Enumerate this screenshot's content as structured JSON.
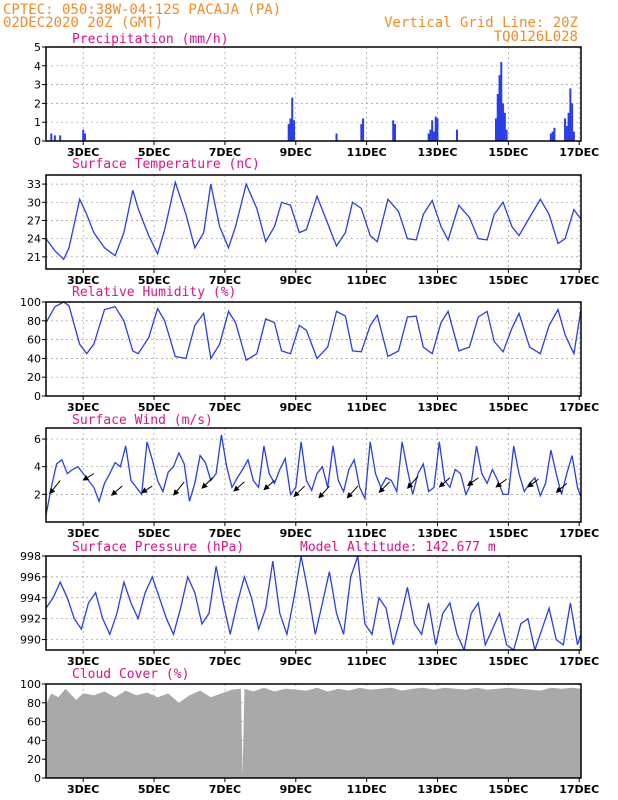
{
  "header": {
    "line1": "CPTEC:   050:38W-04:12S   PACAJA (PA)",
    "line2": "02DEC2020 20Z (GMT)",
    "grid_note": "Vertical Grid Line: 20Z",
    "code": "TQ0126L028",
    "model_altitude": "Model Altitude:  142.677  m"
  },
  "colors": {
    "header": "#f28c28",
    "title": "#e0118a",
    "series": "#2b3de8",
    "cloud": "#a9a9a9",
    "wind_arrow": "#000000"
  },
  "chart_data": [
    {
      "id": "precip",
      "type": "bar",
      "title": "Precipitation (mm/h)",
      "x_ticks": [
        "3DEC",
        "5DEC",
        "7DEC",
        "9DEC",
        "11DEC",
        "13DEC",
        "15DEC",
        "17DEC"
      ],
      "ylim": [
        0,
        5
      ],
      "y_ticks": [
        0,
        1,
        2,
        3,
        4,
        5
      ],
      "x": [
        2.1,
        2.2,
        2.35,
        3.0,
        3.05,
        8.8,
        8.85,
        8.9,
        8.95,
        10.15,
        10.85,
        10.9,
        11.75,
        11.8,
        12.75,
        12.8,
        12.85,
        12.9,
        12.95,
        13.0,
        13.55,
        14.65,
        14.7,
        14.75,
        14.8,
        14.85,
        14.9,
        14.95,
        16.2,
        16.25,
        16.3,
        16.6,
        16.65,
        16.7,
        16.75,
        16.8,
        16.85
      ],
      "values": [
        0.4,
        0.3,
        0.3,
        0.6,
        0.4,
        0.9,
        1.2,
        2.3,
        1.1,
        0.4,
        0.9,
        1.2,
        1.1,
        0.9,
        0.4,
        0.6,
        1.1,
        0.5,
        1.3,
        1.2,
        0.6,
        1.2,
        2.5,
        3.5,
        4.2,
        2.0,
        1.5,
        0.6,
        0.4,
        0.5,
        0.7,
        1.2,
        0.8,
        1.5,
        2.8,
        2.0,
        0.5
      ]
    },
    {
      "id": "temp",
      "type": "line",
      "title": "Surface Temperature (nC)",
      "x_ticks": [
        "3DEC",
        "5DEC",
        "7DEC",
        "9DEC",
        "11DEC",
        "13DEC",
        "15DEC",
        "17DEC"
      ],
      "ylim": [
        19,
        34.5
      ],
      "y_ticks": [
        21,
        24,
        27,
        30,
        33
      ],
      "x": [
        1.95,
        2.2,
        2.45,
        2.6,
        2.9,
        3.1,
        3.3,
        3.6,
        3.9,
        4.15,
        4.4,
        4.55,
        4.85,
        5.1,
        5.3,
        5.6,
        5.9,
        6.15,
        6.4,
        6.6,
        6.85,
        7.1,
        7.3,
        7.6,
        7.9,
        8.15,
        8.4,
        8.6,
        8.85,
        9.1,
        9.3,
        9.6,
        9.9,
        10.15,
        10.4,
        10.6,
        10.85,
        11.1,
        11.3,
        11.6,
        11.9,
        12.15,
        12.4,
        12.6,
        12.85,
        13.1,
        13.3,
        13.6,
        13.9,
        14.15,
        14.4,
        14.6,
        14.85,
        15.1,
        15.3,
        15.6,
        15.9,
        16.15,
        16.4,
        16.6,
        16.85,
        17.05
      ],
      "values": [
        24,
        22,
        20.6,
        22.5,
        30.5,
        28,
        25,
        22.5,
        21.2,
        25,
        32,
        29,
        24.5,
        21.5,
        25.5,
        33.3,
        28,
        22.5,
        25,
        33,
        26,
        22.5,
        26,
        33,
        29,
        23.5,
        26,
        30,
        29.5,
        25,
        25.5,
        31,
        26.5,
        22.8,
        25,
        30,
        29,
        24.5,
        23.5,
        30.5,
        28.5,
        24,
        23.8,
        28,
        30.3,
        26,
        23.8,
        29.5,
        27.5,
        24,
        23.8,
        28,
        30,
        26,
        24.5,
        27.5,
        30.5,
        28,
        23.2,
        24,
        28.8,
        27.2
      ]
    },
    {
      "id": "rh",
      "type": "line",
      "title": "Relative Humidity (%)",
      "x_ticks": [
        "3DEC",
        "5DEC",
        "7DEC",
        "9DEC",
        "11DEC",
        "13DEC",
        "15DEC",
        "17DEC"
      ],
      "ylim": [
        0,
        100
      ],
      "y_ticks": [
        0,
        20,
        40,
        60,
        80,
        100
      ],
      "x": [
        1.95,
        2.2,
        2.45,
        2.6,
        2.9,
        3.1,
        3.3,
        3.6,
        3.9,
        4.15,
        4.4,
        4.55,
        4.85,
        5.1,
        5.3,
        5.6,
        5.9,
        6.15,
        6.4,
        6.6,
        6.85,
        7.1,
        7.3,
        7.6,
        7.9,
        8.15,
        8.4,
        8.6,
        8.85,
        9.1,
        9.3,
        9.6,
        9.9,
        10.15,
        10.4,
        10.6,
        10.85,
        11.1,
        11.3,
        11.6,
        11.9,
        12.15,
        12.4,
        12.6,
        12.85,
        13.1,
        13.3,
        13.6,
        13.9,
        14.15,
        14.4,
        14.6,
        14.85,
        15.1,
        15.3,
        15.6,
        15.9,
        16.15,
        16.4,
        16.6,
        16.85,
        17.05
      ],
      "values": [
        78,
        95,
        100,
        96,
        55,
        45,
        55,
        92,
        95,
        80,
        48,
        45,
        62,
        93,
        80,
        42,
        40,
        75,
        88,
        40,
        55,
        90,
        78,
        38,
        45,
        82,
        78,
        48,
        45,
        75,
        70,
        40,
        52,
        90,
        85,
        48,
        47,
        75,
        86,
        42,
        48,
        84,
        85,
        52,
        45,
        78,
        90,
        48,
        52,
        84,
        90,
        58,
        47,
        72,
        88,
        52,
        45,
        75,
        92,
        65,
        45,
        92
      ]
    },
    {
      "id": "wind",
      "type": "line",
      "title": "Surface Wind (m/s)",
      "x_ticks": [
        "3DEC",
        "5DEC",
        "7DEC",
        "9DEC",
        "11DEC",
        "13DEC",
        "15DEC",
        "17DEC"
      ],
      "ylim": [
        0,
        6.8
      ],
      "y_ticks": [
        2,
        4,
        6
      ],
      "x": [
        1.95,
        2.1,
        2.25,
        2.4,
        2.55,
        2.7,
        2.85,
        3.0,
        3.15,
        3.3,
        3.45,
        3.6,
        3.75,
        3.9,
        4.05,
        4.2,
        4.35,
        4.5,
        4.65,
        4.8,
        4.95,
        5.1,
        5.25,
        5.4,
        5.55,
        5.7,
        5.85,
        6.0,
        6.15,
        6.3,
        6.45,
        6.6,
        6.75,
        6.9,
        7.05,
        7.2,
        7.35,
        7.5,
        7.65,
        7.8,
        7.95,
        8.1,
        8.25,
        8.4,
        8.55,
        8.7,
        8.85,
        9.0,
        9.15,
        9.3,
        9.45,
        9.6,
        9.75,
        9.9,
        10.05,
        10.2,
        10.35,
        10.5,
        10.65,
        10.8,
        10.95,
        11.1,
        11.25,
        11.4,
        11.55,
        11.7,
        11.85,
        12.0,
        12.15,
        12.3,
        12.45,
        12.6,
        12.75,
        12.9,
        13.05,
        13.2,
        13.35,
        13.5,
        13.65,
        13.8,
        13.95,
        14.1,
        14.25,
        14.4,
        14.55,
        14.7,
        14.85,
        15.0,
        15.15,
        15.3,
        15.45,
        15.6,
        15.75,
        15.9,
        16.05,
        16.2,
        16.35,
        16.5,
        16.65,
        16.8,
        16.95,
        17.05
      ],
      "values": [
        0.5,
        2.5,
        4.2,
        4.5,
        3.5,
        3.8,
        4.0,
        3.5,
        3.0,
        2.5,
        1.5,
        2.8,
        3.5,
        4.3,
        4.0,
        5.5,
        3.0,
        2.5,
        2.0,
        5.8,
        4.5,
        3.0,
        2.2,
        3.6,
        4.0,
        5.0,
        4.2,
        1.5,
        2.8,
        4.8,
        4.3,
        3.0,
        3.5,
        6.3,
        4.0,
        2.5,
        3.2,
        3.8,
        4.5,
        3.0,
        2.5,
        5.5,
        3.5,
        2.8,
        3.8,
        4.6,
        2.0,
        2.5,
        5.8,
        3.0,
        2.3,
        3.5,
        4.0,
        2.5,
        5.5,
        3.0,
        2.2,
        3.8,
        4.5,
        2.5,
        1.7,
        5.8,
        3.5,
        2.5,
        3.2,
        3.0,
        2.2,
        5.8,
        3.8,
        2.0,
        3.5,
        4.2,
        2.2,
        2.5,
        5.8,
        3.0,
        2.5,
        3.8,
        3.5,
        2.0,
        2.8,
        5.5,
        3.5,
        2.8,
        3.8,
        3.0,
        2.0,
        2.0,
        5.5,
        3.5,
        2.2,
        2.8,
        3.2,
        1.9,
        2.8,
        5.2,
        3.5,
        2.0,
        3.5,
        4.8,
        2.5,
        1.8
      ],
      "vectors": {
        "x": [
          2.35,
          3.3,
          4.1,
          4.95,
          5.85,
          6.65,
          7.55,
          8.4,
          9.25,
          9.95,
          10.75,
          11.65,
          12.45,
          13.35,
          14.15,
          14.95,
          15.85,
          16.65
        ],
        "y": [
          3.0,
          3.5,
          2.6,
          2.6,
          2.9,
          3.2,
          2.9,
          3.0,
          2.6,
          2.6,
          2.6,
          2.9,
          3.3,
          3.2,
          3.2,
          3.1,
          3.1,
          2.8
        ],
        "u": [
          -0.8,
          -0.8,
          -0.8,
          -0.8,
          -0.8,
          -0.8,
          -0.8,
          -0.8,
          -0.8,
          -0.8,
          -0.8,
          -0.8,
          -0.8,
          -0.8,
          -0.8,
          -0.8,
          -0.8,
          -0.8
        ],
        "v": [
          -1.0,
          -0.5,
          -0.7,
          -0.5,
          -1.0,
          -0.8,
          -0.7,
          -0.7,
          -0.8,
          -0.9,
          -0.9,
          -0.8,
          -0.9,
          -0.7,
          -0.6,
          -0.6,
          -0.6,
          -0.7
        ]
      }
    },
    {
      "id": "press",
      "type": "line",
      "title": "Surface Pressure (hPa)",
      "x_ticks": [
        "3DEC",
        "5DEC",
        "7DEC",
        "9DEC",
        "11DEC",
        "13DEC",
        "15DEC",
        "17DEC"
      ],
      "ylim": [
        989,
        998
      ],
      "y_ticks": [
        990,
        992,
        994,
        996,
        998
      ],
      "x": [
        1.95,
        2.15,
        2.35,
        2.55,
        2.75,
        2.95,
        3.15,
        3.35,
        3.55,
        3.75,
        3.95,
        4.15,
        4.35,
        4.55,
        4.75,
        4.95,
        5.15,
        5.35,
        5.55,
        5.75,
        5.95,
        6.15,
        6.35,
        6.55,
        6.75,
        6.95,
        7.15,
        7.35,
        7.55,
        7.75,
        7.95,
        8.15,
        8.35,
        8.55,
        8.75,
        8.95,
        9.15,
        9.35,
        9.55,
        9.75,
        9.95,
        10.15,
        10.35,
        10.55,
        10.75,
        10.95,
        11.15,
        11.35,
        11.55,
        11.75,
        11.95,
        12.15,
        12.35,
        12.55,
        12.75,
        12.95,
        13.15,
        13.35,
        13.55,
        13.75,
        13.95,
        14.15,
        14.35,
        14.55,
        14.75,
        14.95,
        15.15,
        15.35,
        15.55,
        15.75,
        15.95,
        16.15,
        16.35,
        16.55,
        16.75,
        16.95,
        17.05
      ],
      "values": [
        993,
        994,
        995.5,
        994,
        992,
        991,
        993.5,
        994.5,
        992,
        990.5,
        992.5,
        995.5,
        993.5,
        992,
        994.5,
        996,
        994,
        992,
        990.5,
        993,
        996,
        994.5,
        991.5,
        992.5,
        997,
        993.5,
        990.5,
        993.5,
        996,
        994,
        991,
        993,
        997.5,
        992.5,
        990.5,
        994,
        998,
        994.5,
        990.5,
        993.5,
        996.5,
        992.5,
        990.5,
        996,
        998,
        991.5,
        990.5,
        994,
        993,
        989.5,
        992,
        995,
        991.5,
        990.5,
        993.5,
        989.5,
        992.5,
        993.5,
        990.5,
        989,
        992.5,
        993.5,
        989.5,
        991,
        992.5,
        989.5,
        989,
        991.5,
        992,
        989,
        991,
        993,
        990,
        989.5,
        993.5,
        989.5,
        990.5
      ]
    },
    {
      "id": "cloud",
      "type": "area",
      "title": "Cloud Cover (%)",
      "x_ticks": [
        "3DEC",
        "5DEC",
        "7DEC",
        "9DEC",
        "11DEC",
        "13DEC",
        "15DEC",
        "17DEC"
      ],
      "ylim": [
        0,
        100
      ],
      "y_ticks": [
        0,
        20,
        40,
        60,
        80,
        100
      ],
      "x": [
        1.95,
        2.1,
        2.3,
        2.5,
        2.8,
        3.0,
        3.3,
        3.6,
        3.9,
        4.2,
        4.5,
        4.8,
        5.1,
        5.4,
        5.7,
        6.0,
        6.3,
        6.6,
        6.9,
        7.2,
        7.45,
        7.5,
        7.55,
        7.8,
        8.1,
        8.4,
        8.7,
        9.0,
        9.3,
        9.6,
        9.9,
        10.2,
        10.5,
        10.8,
        11.1,
        11.4,
        11.7,
        12.0,
        12.3,
        12.6,
        12.9,
        13.2,
        13.5,
        13.8,
        14.1,
        14.4,
        14.7,
        15.0,
        15.3,
        15.6,
        15.9,
        16.2,
        16.5,
        16.8,
        17.05
      ],
      "values": [
        78,
        90,
        86,
        95,
        83,
        90,
        88,
        92,
        86,
        93,
        88,
        91,
        86,
        90,
        80,
        88,
        93,
        86,
        90,
        94,
        95,
        3,
        95,
        92,
        96,
        92,
        95,
        94,
        93,
        96,
        92,
        95,
        93,
        96,
        94,
        95,
        96,
        93,
        95,
        96,
        94,
        96,
        95,
        94,
        96,
        94,
        95,
        96,
        95,
        94,
        93,
        96,
        95,
        96,
        95
      ]
    }
  ]
}
